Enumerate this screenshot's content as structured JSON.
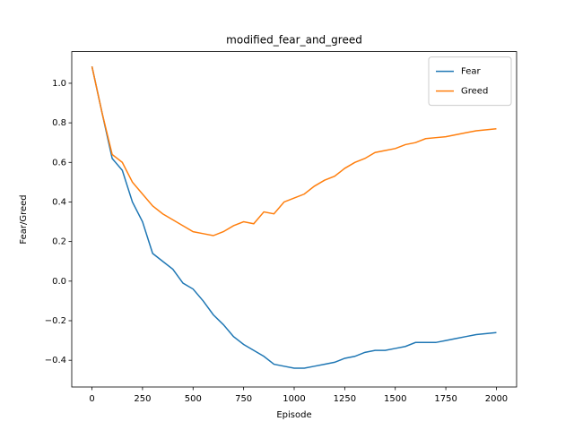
{
  "chart_data": {
    "type": "line",
    "title": "modified_fear_and_greed",
    "xlabel": "Episode",
    "ylabel": "Fear/Greed",
    "x": [
      0,
      50,
      100,
      150,
      200,
      250,
      300,
      350,
      400,
      450,
      500,
      550,
      600,
      650,
      700,
      750,
      800,
      850,
      900,
      950,
      1000,
      1050,
      1100,
      1150,
      1200,
      1250,
      1300,
      1350,
      1400,
      1450,
      1500,
      1550,
      1600,
      1650,
      1700,
      1750,
      1800,
      1850,
      1900,
      1950,
      2000
    ],
    "series": [
      {
        "name": "Fear",
        "color": "#1f77b4",
        "values": [
          1.085,
          0.85,
          0.62,
          0.56,
          0.4,
          0.3,
          0.14,
          0.1,
          0.06,
          -0.01,
          -0.04,
          -0.1,
          -0.17,
          -0.22,
          -0.28,
          -0.32,
          -0.35,
          -0.38,
          -0.42,
          -0.43,
          -0.44,
          -0.44,
          -0.43,
          -0.42,
          -0.41,
          -0.39,
          -0.38,
          -0.36,
          -0.35,
          -0.35,
          -0.34,
          -0.33,
          -0.31,
          -0.31,
          -0.31,
          -0.3,
          -0.29,
          -0.28,
          -0.27,
          -0.265,
          -0.26
        ]
      },
      {
        "name": "Greed",
        "color": "#ff7f0e",
        "values": [
          1.085,
          0.85,
          0.64,
          0.6,
          0.5,
          0.44,
          0.38,
          0.34,
          0.31,
          0.28,
          0.25,
          0.24,
          0.23,
          0.25,
          0.28,
          0.3,
          0.29,
          0.35,
          0.34,
          0.4,
          0.42,
          0.44,
          0.48,
          0.51,
          0.53,
          0.57,
          0.6,
          0.62,
          0.65,
          0.66,
          0.67,
          0.69,
          0.7,
          0.72,
          0.725,
          0.73,
          0.74,
          0.75,
          0.76,
          0.765,
          0.77
        ]
      }
    ],
    "xlim": [
      -100,
      2100
    ],
    "xticks": [
      0,
      250,
      500,
      750,
      1000,
      1250,
      1500,
      1750,
      2000
    ],
    "ylim": [
      -0.535,
      1.16
    ],
    "yticks": [
      {
        "value": -0.4,
        "label": "−0.4"
      },
      {
        "value": -0.2,
        "label": "−0.2"
      },
      {
        "value": 0,
        "label": "0.0"
      },
      {
        "value": 0.2,
        "label": "0.2"
      },
      {
        "value": 0.4,
        "label": "0.4"
      },
      {
        "value": 0.6,
        "label": "0.6"
      },
      {
        "value": 0.8,
        "label": "0.8"
      },
      {
        "value": 1.0,
        "label": "1.0"
      }
    ],
    "legend": "upper right",
    "grid": false
  }
}
